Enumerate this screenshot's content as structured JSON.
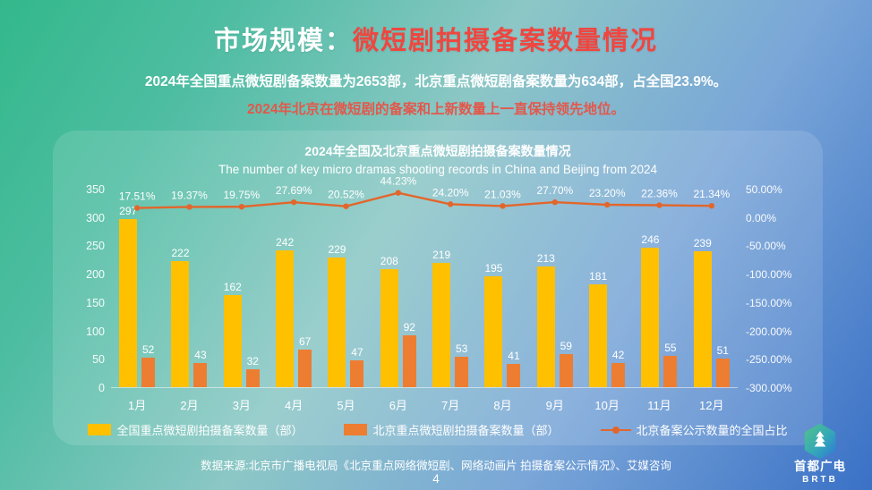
{
  "slide": {
    "title_prefix": "市场规模：",
    "title_highlight": "微短剧拍摄备案数量情况",
    "subtitle": "2024年全国重点微短剧备案数量为2653部，北京重点微短剧备案数量为634部，占全国23.9%。",
    "subtitle_emphasis": "2024年北京在微短剧的备案和上新数量上一直保持领先地位。",
    "footer_source": "数据来源:北京市广播电视局《北京重点网络微短剧、网络动画片  拍摄备案公示情况》、艾媒咨询",
    "page_number": "4",
    "logo": {
      "name_zh": "首都广电",
      "name_en": "BRTB"
    },
    "colors": {
      "title_accent": "#EE4741",
      "subtitle_accent": "#E2584C",
      "background_top_left": "#33B88B",
      "background_bottom_right": "#3A71C6"
    }
  },
  "chart_data": {
    "type": "combo",
    "title": "2024年全国及北京重点微短剧拍摄备案数量情况",
    "subtitle_en": "The number of key micro dramas shooting records in China and Beijing from 2024",
    "categories": [
      "1月",
      "2月",
      "3月",
      "4月",
      "5月",
      "6月",
      "7月",
      "8月",
      "9月",
      "10月",
      "11月",
      "12月"
    ],
    "series": [
      {
        "name": "全国重点微短剧拍摄备案数量（部）",
        "type": "bar",
        "color": "#FFC000",
        "values": [
          297,
          222,
          162,
          242,
          229,
          208,
          219,
          195,
          213,
          181,
          246,
          239
        ]
      },
      {
        "name": "北京重点微短剧拍摄备案数量（部）",
        "type": "bar",
        "color": "#ED7D31",
        "values": [
          52,
          43,
          32,
          67,
          47,
          92,
          53,
          41,
          59,
          42,
          55,
          51
        ]
      },
      {
        "name": "北京备案公示数量的全国占比",
        "type": "line",
        "color": "#E2662C",
        "values": [
          17.51,
          19.37,
          19.75,
          27.69,
          20.52,
          44.23,
          24.2,
          21.03,
          27.7,
          23.2,
          22.36,
          21.34
        ],
        "labels": [
          "17.51%",
          "19.37%",
          "19.75%",
          "27.69%",
          "20.52%",
          "44.23%",
          "24.20%",
          "21.03%",
          "27.70%",
          "23.20%",
          "22.36%",
          "21.34%"
        ]
      }
    ],
    "left_axis": {
      "ticks": [
        "350",
        "300",
        "250",
        "200",
        "150",
        "100",
        "50",
        "0"
      ],
      "max": 350,
      "min": 0
    },
    "right_axis": {
      "ticks": [
        "50.00%",
        "0.00%",
        "-50.00%",
        "-100.00%",
        "-150.00%",
        "-200.00%",
        "-250.00%",
        "-300.00%"
      ],
      "max": 50,
      "min": -300
    },
    "legend_position": "bottom",
    "grid": false
  }
}
